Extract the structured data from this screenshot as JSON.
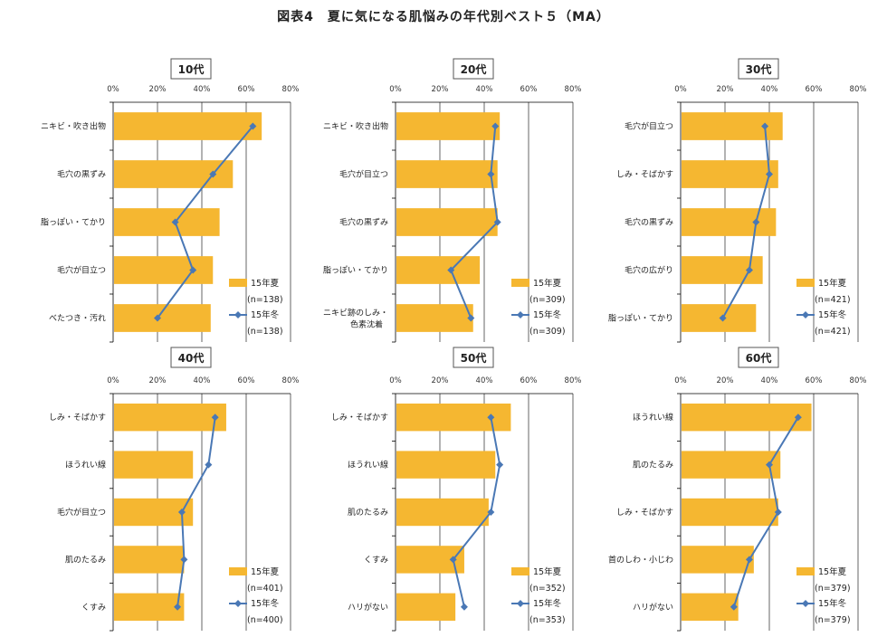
{
  "page": {
    "title": "図表4　夏に気になる肌悩みの年代別ベスト５（MA）"
  },
  "colors": {
    "bar": "#F5B731",
    "line": "#4A78B5",
    "grid": "#000000"
  },
  "chart_data": [
    {
      "type": "bar",
      "title": "10代",
      "categories": [
        "ニキビ・吹き出物",
        "毛穴の黒ずみ",
        "脂っぽい・てかり",
        "毛穴が目立つ",
        "べたつき・汚れ"
      ],
      "xlim": [
        0,
        80
      ],
      "ticks": [
        "0%",
        "20%",
        "40%",
        "60%",
        "80%"
      ],
      "legend": "bottom-right",
      "series": [
        {
          "name": "15年夏",
          "n": "(n=138)",
          "kind": "bar",
          "values": [
            67,
            54,
            48,
            45,
            44
          ]
        },
        {
          "name": "15年冬",
          "n": "(n=138)",
          "kind": "line",
          "values": [
            63,
            45,
            28,
            36,
            20
          ]
        }
      ]
    },
    {
      "type": "bar",
      "title": "20代",
      "categories": [
        "ニキビ・吹き出物",
        "毛穴が目立つ",
        "毛穴の黒ずみ",
        "脂っぽい・てかり",
        "ニキビ跡のしみ・色素沈着"
      ],
      "xlim": [
        0,
        80
      ],
      "ticks": [
        "0%",
        "20%",
        "40%",
        "60%",
        "80%"
      ],
      "legend": "bottom-right",
      "series": [
        {
          "name": "15年夏",
          "n": "(n=309)",
          "kind": "bar",
          "values": [
            47,
            46,
            46,
            38,
            35
          ]
        },
        {
          "name": "15年冬",
          "n": "(n=309)",
          "kind": "line",
          "values": [
            45,
            43,
            46,
            25,
            34
          ]
        }
      ]
    },
    {
      "type": "bar",
      "title": "30代",
      "categories": [
        "毛穴が目立つ",
        "しみ・そばかす",
        "毛穴の黒ずみ",
        "毛穴の広がり",
        "脂っぽい・てかり"
      ],
      "xlim": [
        0,
        80
      ],
      "ticks": [
        "0%",
        "20%",
        "40%",
        "60%",
        "80%"
      ],
      "legend": "bottom-right",
      "series": [
        {
          "name": "15年夏",
          "n": "(n=421)",
          "kind": "bar",
          "values": [
            46,
            44,
            43,
            37,
            34
          ]
        },
        {
          "name": "15年冬",
          "n": "(n=421)",
          "kind": "line",
          "values": [
            38,
            40,
            34,
            31,
            19
          ]
        }
      ]
    },
    {
      "type": "bar",
      "title": "40代",
      "categories": [
        "しみ・そばかす",
        "ほうれい線",
        "毛穴が目立つ",
        "肌のたるみ",
        "くすみ"
      ],
      "xlim": [
        0,
        80
      ],
      "ticks": [
        "0%",
        "20%",
        "40%",
        "60%",
        "80%"
      ],
      "legend": "bottom-right",
      "series": [
        {
          "name": "15年夏",
          "n": "(n=401)",
          "kind": "bar",
          "values": [
            51,
            36,
            36,
            32,
            32
          ]
        },
        {
          "name": "15年冬",
          "n": "(n=400)",
          "kind": "line",
          "values": [
            46,
            43,
            31,
            32,
            29
          ]
        }
      ]
    },
    {
      "type": "bar",
      "title": "50代",
      "categories": [
        "しみ・そばかす",
        "ほうれい線",
        "肌のたるみ",
        "くすみ",
        "ハリがない"
      ],
      "xlim": [
        0,
        80
      ],
      "ticks": [
        "0%",
        "20%",
        "40%",
        "60%",
        "80%"
      ],
      "legend": "bottom-right",
      "series": [
        {
          "name": "15年夏",
          "n": "(n=352)",
          "kind": "bar",
          "values": [
            52,
            45,
            42,
            31,
            27
          ]
        },
        {
          "name": "15年冬",
          "n": "(n=353)",
          "kind": "line",
          "values": [
            43,
            47,
            43,
            26,
            31
          ]
        }
      ]
    },
    {
      "type": "bar",
      "title": "60代",
      "categories": [
        "ほうれい線",
        "肌のたるみ",
        "しみ・そばかす",
        "首のしわ・小じわ",
        "ハリがない"
      ],
      "xlim": [
        0,
        80
      ],
      "ticks": [
        "0%",
        "20%",
        "40%",
        "60%",
        "80%"
      ],
      "legend": "bottom-right",
      "series": [
        {
          "name": "15年夏",
          "n": "(n=379)",
          "kind": "bar",
          "values": [
            59,
            45,
            44,
            33,
            26
          ]
        },
        {
          "name": "15年冬",
          "n": "(n=379)",
          "kind": "line",
          "values": [
            53,
            40,
            44,
            31,
            24
          ]
        }
      ]
    }
  ]
}
